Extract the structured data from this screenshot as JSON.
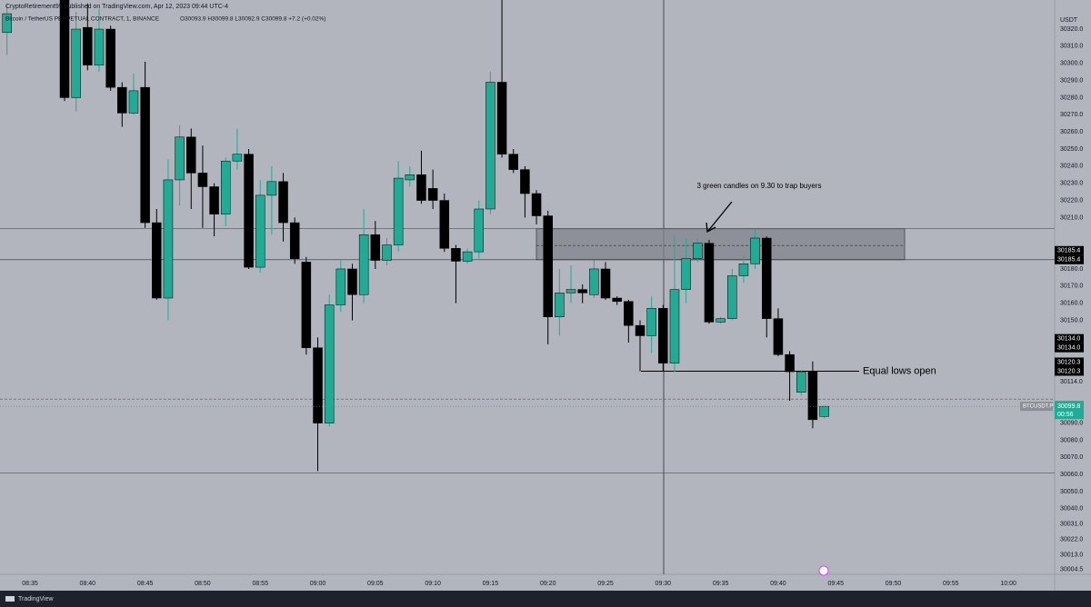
{
  "header": {
    "publisher": "CryptoRetirement99 published on TradingView.com, Apr 12, 2023 09:44 UTC-4",
    "symbol": "Bitcoin / TetherUS PERPETUAL CONTRACT, 1, BINANCE",
    "ohlc": "O30093.9 H30099.8 L30092.9 C30099.8 +7.2 (+0.02%)"
  },
  "chart_data": {
    "type": "candlestick",
    "currency": "USDT",
    "up_color": "#22ab94",
    "down_color": "#000000",
    "categories": [
      null,
      null,
      "08:35",
      null,
      null,
      null,
      null,
      "08:40",
      null,
      null,
      null,
      null,
      "08:45",
      null,
      null,
      null,
      null,
      "08:50",
      null,
      null,
      null,
      null,
      "08:55",
      null,
      null,
      null,
      null,
      "09:00",
      null,
      null,
      null,
      null,
      "09:05",
      null,
      null,
      null,
      null,
      "09:10",
      null,
      null,
      null,
      null,
      "09:15",
      null,
      null,
      null,
      null,
      "09:20",
      null,
      null,
      null,
      null,
      "09:25",
      null,
      null,
      null,
      null,
      "09:30",
      null,
      null,
      null,
      null,
      "09:35",
      null,
      null,
      null,
      null,
      "09:40",
      null,
      null,
      null,
      null,
      "09:45",
      null,
      null,
      null,
      null,
      "09:50",
      null,
      null,
      null,
      null,
      "09:55",
      null,
      null,
      null,
      null,
      "10:00"
    ],
    "open": [
      30318,
      null,
      null,
      null,
      null,
      30340,
      30280,
      30321,
      30299,
      30320,
      30286,
      30271,
      30286,
      30207,
      30163,
      30232,
      30257,
      30236,
      30228,
      30212,
      30243,
      30247,
      30181,
      30223,
      30231,
      30207,
      30184,
      30134,
      30090,
      30159,
      30180,
      30165,
      30200,
      30185,
      30194,
      30232,
      30235,
      30227,
      30220,
      30192,
      30184.5,
      30190,
      30215,
      30289,
      30247,
      30238,
      30224,
      30211,
      30152,
      30166,
      30168,
      30165,
      30180,
      30163,
      30161,
      30147,
      30141,
      30157,
      30125,
      30168,
      30186,
      30195,
      30149,
      30151,
      30176,
      30183,
      30198,
      30151,
      30130,
      30108,
      30120,
      30093.9,
      null,
      null,
      null,
      null,
      null,
      null,
      null,
      null,
      null,
      null,
      null,
      null,
      null,
      null,
      null,
      null
    ],
    "high": [
      30334,
      null,
      null,
      null,
      null,
      30345,
      30330,
      30335,
      30332,
      30322,
      30289,
      30294,
      30301,
      30215,
      30244,
      30264,
      30262,
      30252,
      30230,
      30245,
      30262,
      30250,
      30232,
      30240,
      30236,
      30210,
      30187,
      30140,
      30165,
      30185,
      30183,
      30215,
      30208,
      30198,
      30243,
      30240,
      30249,
      30238,
      30224,
      30194,
      30192,
      30220,
      30295,
      30345,
      30250,
      30240,
      30226,
      30214,
      30180,
      30182,
      30171,
      30185,
      30184,
      30164,
      30162,
      30150,
      30164,
      30159,
      30200,
      30198,
      30198,
      30197,
      30152,
      30180,
      30188,
      30203,
      30199,
      30157,
      30132,
      30121,
      30126,
      30099.8,
      null,
      null,
      null,
      null,
      null,
      null,
      null,
      null,
      null,
      null,
      null,
      null,
      null,
      null,
      null,
      null
    ],
    "low": [
      30305,
      null,
      null,
      null,
      null,
      30278,
      30272,
      30296,
      30295,
      30284,
      30263,
      30270,
      30204,
      30162,
      30150,
      30217,
      30215,
      30204,
      30199,
      30205,
      30238,
      30180,
      30178,
      30200,
      30196,
      30183,
      30130,
      30062,
      30088,
      30155,
      30150,
      30160,
      30180,
      30182,
      30190,
      30228,
      30218,
      30215,
      30190,
      30160,
      30183,
      30186,
      30212,
      30245,
      30236,
      30210,
      30206,
      30136,
      30141,
      30160,
      30160,
      30163,
      30162,
      30159,
      30137,
      30120.3,
      30131,
      30120.3,
      30120,
      30160,
      30184,
      30148,
      30148,
      30150,
      30172,
      30180,
      30140,
      30129,
      30103,
      30106,
      30087,
      30092.9,
      null,
      null,
      null,
      null,
      null,
      null,
      null,
      null,
      null,
      null,
      null,
      null,
      null,
      null,
      null,
      null
    ],
    "close": [
      30329,
      null,
      null,
      null,
      null,
      30280,
      30320,
      30299,
      30320,
      30286,
      30271,
      30284,
      30207,
      30163,
      30232,
      30257,
      30236,
      30228,
      30212,
      30243,
      30247,
      30181,
      30223,
      30231,
      30207,
      30186,
      30134,
      30090,
      30159,
      30180,
      30165,
      30200,
      30185,
      30194,
      30233,
      30235,
      30220,
      30220,
      30192,
      30184.5,
      30190,
      30215,
      30289,
      30247,
      30238,
      30224,
      30211,
      30152,
      30166,
      30168,
      30166,
      30180,
      30163,
      30161,
      30147,
      30141,
      30157,
      30125,
      30168,
      30186,
      30195,
      30149,
      30151,
      30176,
      30183,
      30198,
      30151,
      30130,
      30120,
      30120,
      30092,
      30099.8,
      null,
      null,
      null,
      null,
      null,
      null,
      null,
      null,
      null,
      null,
      null,
      null,
      null,
      null,
      null,
      null
    ],
    "ylim": [
      29997.5,
      30337
    ],
    "yticks": [
      {
        "value": 30320,
        "label": "30320.0"
      },
      {
        "value": 30310,
        "label": "30310.0"
      },
      {
        "value": 30300,
        "label": "30300.0"
      },
      {
        "value": 30290,
        "label": "30290.0"
      },
      {
        "value": 30280,
        "label": "30280.0"
      },
      {
        "value": 30270,
        "label": "30270.0"
      },
      {
        "value": 30260,
        "label": "30260.0"
      },
      {
        "value": 30250,
        "label": "30250.0"
      },
      {
        "value": 30240,
        "label": "30240.0"
      },
      {
        "value": 30230,
        "label": "30230.0"
      },
      {
        "value": 30220,
        "label": "30220.0"
      },
      {
        "value": 30210,
        "label": "30210.0"
      },
      {
        "value": 30180,
        "label": "30180.0"
      },
      {
        "value": 30170,
        "label": "30170.0"
      },
      {
        "value": 30160,
        "label": "30160.0"
      },
      {
        "value": 30150,
        "label": "30150.0"
      },
      {
        "value": 30114,
        "label": "30114.0"
      },
      {
        "value": 30090,
        "label": "30090.0"
      },
      {
        "value": 30080,
        "label": "30080.0"
      },
      {
        "value": 30070,
        "label": "30070.0"
      },
      {
        "value": 30060,
        "label": "30060.0"
      },
      {
        "value": 30050,
        "label": "30050.0"
      },
      {
        "value": 30040,
        "label": "30040.0"
      },
      {
        "value": 30031,
        "label": "30031.0"
      },
      {
        "value": 30022,
        "label": "30022.0"
      },
      {
        "value": 30013,
        "label": "30013.0"
      },
      {
        "value": 30004.5,
        "label": "30004.5"
      }
    ],
    "price_tags": [
      30185.4,
      {
        "value": 30134,
        "label": "30134.0"
      },
      30120.3
    ],
    "last_price": {
      "value": 30099.8,
      "symbol": "BTCUSDT.P",
      "countdown": "00:56"
    },
    "zone": {
      "low": 30185.4,
      "high": 30203.5,
      "mid": 30193.7
    },
    "levels": [
      {
        "value": 30061,
        "style": "solid"
      },
      {
        "value": 30104,
        "style": "dashed"
      }
    ],
    "annotations": [
      {
        "text": "3 green candles on 9.30 to trap buyers"
      },
      {
        "text": "Equal lows open",
        "value": 30120.3
      }
    ]
  },
  "footer": "TradingView"
}
